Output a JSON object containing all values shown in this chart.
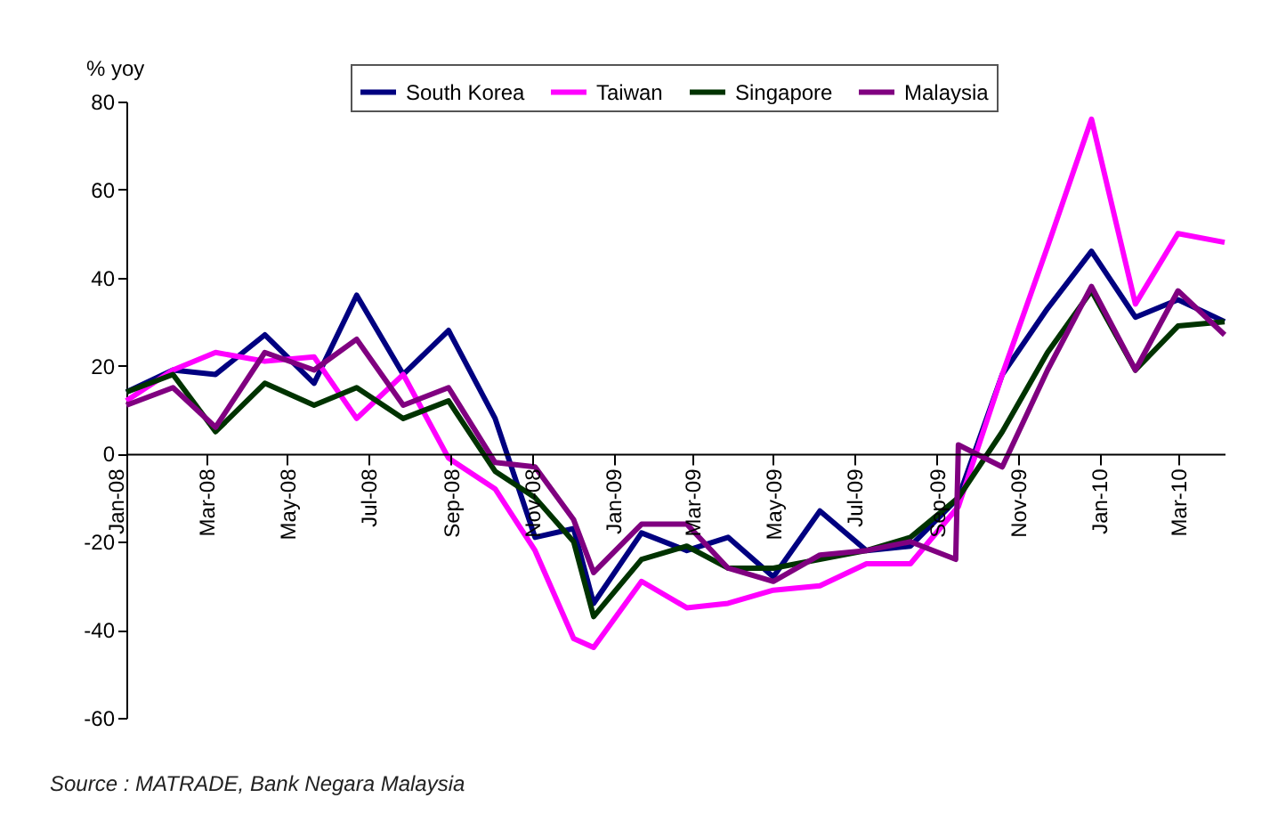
{
  "chart_data": {
    "type": "line",
    "ylabel": "% yoy",
    "legend": "top",
    "line_style": "solid",
    "x": [
      "2008-01-01",
      "2008-02-05",
      "2008-03-08",
      "2008-04-14",
      "2008-05-21",
      "2008-06-22",
      "2008-07-27",
      "2008-08-30",
      "2008-10-04",
      "2008-11-03",
      "2008-12-02",
      "2008-12-17",
      "2009-01-22",
      "2009-02-25",
      "2009-03-28",
      "2009-05-01",
      "2009-06-05",
      "2009-07-10",
      "2009-08-12",
      "2009-09-17",
      "2009-10-20",
      "2009-11-23",
      "2009-12-26",
      "2010-01-28",
      "2010-03-01",
      "2010-04-05"
    ],
    "xlim": [
      "2008-01-01",
      "2010-04-05"
    ],
    "xticks": [
      {
        "value": "2008-01-01",
        "label": "Jan-08"
      },
      {
        "value": "2008-03-01",
        "label": "Mar-08"
      },
      {
        "value": "2008-05-01",
        "label": "May-08"
      },
      {
        "value": "2008-07-01",
        "label": "Jul-08"
      },
      {
        "value": "2008-09-01",
        "label": "Sep-08"
      },
      {
        "value": "2008-11-01",
        "label": "Nov-08"
      },
      {
        "value": "2009-01-01",
        "label": "Jan-09"
      },
      {
        "value": "2009-03-01",
        "label": "Mar-09"
      },
      {
        "value": "2009-05-01",
        "label": "May-09"
      },
      {
        "value": "2009-07-01",
        "label": "Jul-09"
      },
      {
        "value": "2009-09-01",
        "label": "Sep-09"
      },
      {
        "value": "2009-11-01",
        "label": "Nov-09"
      },
      {
        "value": "2010-01-01",
        "label": "Jan-10"
      },
      {
        "value": "2010-03-01",
        "label": "Mar-10"
      }
    ],
    "ylim": [
      -60,
      80
    ],
    "yticks": [
      -60,
      -40,
      -20,
      0,
      20,
      40,
      60,
      80
    ],
    "series": [
      {
        "name": "South Korea",
        "color": "#000080",
        "values": [
          14,
          19,
          18,
          27,
          16,
          36,
          18,
          28,
          8,
          -19,
          -17,
          -34,
          -18,
          -22,
          -19,
          -28,
          -13,
          -22,
          -21,
          -10,
          18,
          33,
          46,
          31,
          35,
          30
        ]
      },
      {
        "name": "Taiwan",
        "color": "#ff00ff",
        "values": [
          12,
          19,
          23,
          21,
          22,
          8,
          18,
          -1,
          -8,
          -22,
          -42,
          -44,
          -29,
          -35,
          -34,
          -31,
          -30,
          -25,
          -25,
          -12,
          18,
          47,
          76,
          34,
          50,
          48
        ]
      },
      {
        "name": "Singapore",
        "color": "#003300",
        "values": [
          14,
          18,
          5,
          16,
          11,
          15,
          8,
          12,
          -4,
          -10,
          -20,
          -37,
          -24,
          -21,
          -26,
          -26,
          -24,
          -22,
          -19,
          -10,
          5,
          23,
          37,
          19,
          29,
          30
        ]
      },
      {
        "name": "Malaysia",
        "color": "#800080",
        "x": [
          "2008-01-01",
          "2008-02-05",
          "2008-03-08",
          "2008-04-14",
          "2008-05-21",
          "2008-06-22",
          "2008-07-27",
          "2008-08-30",
          "2008-10-04",
          "2008-11-03",
          "2008-12-02",
          "2008-12-17",
          "2009-01-22",
          "2009-02-25",
          "2009-03-28",
          "2009-05-01",
          "2009-06-05",
          "2009-07-10",
          "2009-08-12",
          "2009-09-15",
          "2009-09-17",
          "2009-10-20",
          "2009-11-23",
          "2009-12-26",
          "2010-01-28",
          "2010-03-01",
          "2010-04-05"
        ],
        "values": [
          11,
          15,
          6,
          23,
          19,
          26,
          11,
          15,
          -2,
          -3,
          -15,
          -27,
          -16,
          -16,
          -26,
          -29,
          -23,
          -22,
          -20,
          -24,
          2,
          -3,
          19,
          38,
          19,
          37,
          27
        ]
      }
    ],
    "annotations": [
      "Source : MATRADE, Bank Negara Malaysia"
    ]
  }
}
